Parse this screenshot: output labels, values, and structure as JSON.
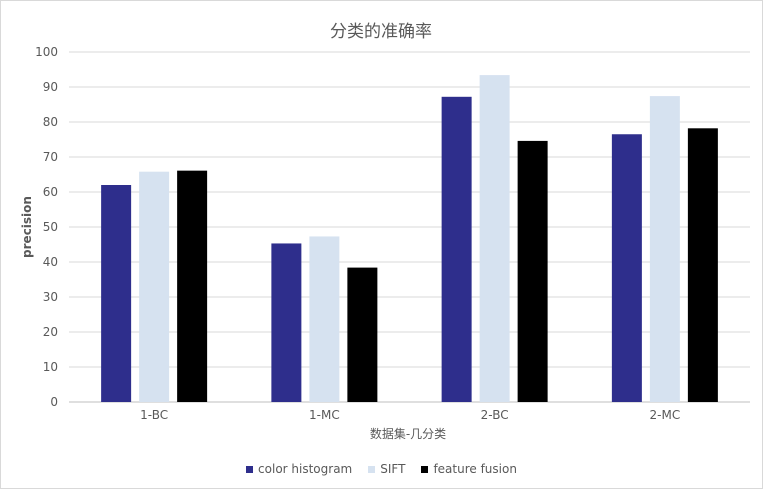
{
  "chart_data": {
    "type": "bar",
    "title": "分类的准确率",
    "xlabel": "数据集-几分类",
    "ylabel": "precision",
    "categories": [
      "1-BC",
      "1-MC",
      "2-BC",
      "2-MC"
    ],
    "ylim": [
      0,
      100
    ],
    "yticks": [
      0,
      10,
      20,
      30,
      40,
      50,
      60,
      70,
      80,
      90,
      100
    ],
    "grid": true,
    "legend_position": "bottom",
    "series": [
      {
        "name": "color histogram",
        "color": "#2e2e8c",
        "values": [
          62,
          45.3,
          87.2,
          76.5
        ]
      },
      {
        "name": "SIFT",
        "color": "#d6e2f0",
        "values": [
          65.8,
          47.3,
          93.4,
          87.4
        ]
      },
      {
        "name": "feature fusion",
        "color": "#000000",
        "values": [
          66.1,
          38.4,
          74.6,
          78.2
        ]
      }
    ]
  }
}
